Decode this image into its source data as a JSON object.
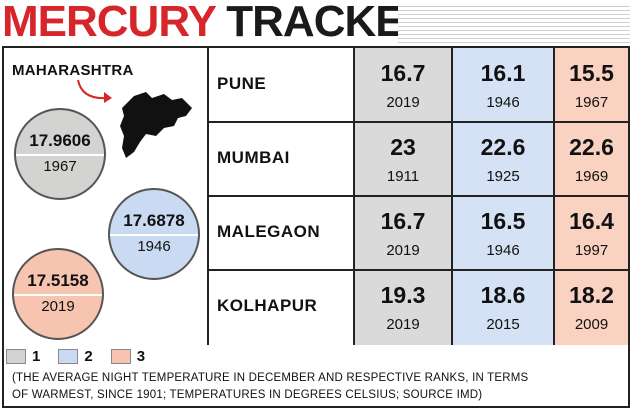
{
  "title": {
    "part1": "MERCURY",
    "part2": "TRACKER"
  },
  "state": {
    "label": "MAHARASHTRA",
    "bubbles": [
      {
        "value": "17.9606",
        "year": "1967"
      },
      {
        "value": "17.6878",
        "year": "1946"
      },
      {
        "value": "17.5158",
        "year": "2019"
      }
    ]
  },
  "legend": [
    {
      "label": "1",
      "color": "#d3d3d1"
    },
    {
      "label": "2",
      "color": "#c9daf2"
    },
    {
      "label": "3",
      "color": "#f7c4b0"
    }
  ],
  "table": {
    "rows": [
      {
        "city": "PUNE",
        "cells": [
          {
            "temp": "16.7",
            "year": "2019"
          },
          {
            "temp": "16.1",
            "year": "1946"
          },
          {
            "temp": "15.5",
            "year": "1967"
          }
        ]
      },
      {
        "city": "MUMBAI",
        "cells": [
          {
            "temp": "23",
            "year": "1911"
          },
          {
            "temp": "22.6",
            "year": "1925"
          },
          {
            "temp": "22.6",
            "year": "1969"
          }
        ]
      },
      {
        "city": "MALEGAON",
        "cells": [
          {
            "temp": "16.7",
            "year": "2019"
          },
          {
            "temp": "16.5",
            "year": "1946"
          },
          {
            "temp": "16.4",
            "year": "1997"
          }
        ]
      },
      {
        "city": "KOLHAPUR",
        "cells": [
          {
            "temp": "19.3",
            "year": "2019"
          },
          {
            "temp": "18.6",
            "year": "2015"
          },
          {
            "temp": "18.2",
            "year": "2009"
          }
        ]
      }
    ]
  },
  "footnote": {
    "line1": "(THE AVERAGE NIGHT TEMPERATURE IN DECEMBER AND RESPECTIVE RANKS, IN TERMS",
    "line2": "OF WARMEST, SINCE 1901; TEMPERATURES IN DEGREES CELSIUS; SOURCE IMD)"
  }
}
